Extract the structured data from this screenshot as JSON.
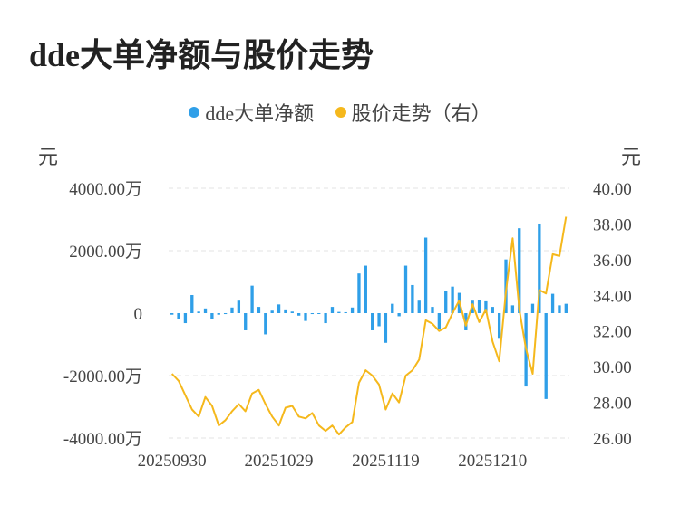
{
  "title": "dde大单净额与股价走势",
  "legend": {
    "items": [
      {
        "label": "dde大单净额",
        "color": "#2f9fe8"
      },
      {
        "label": "股价走势（右）",
        "color": "#f5b81c"
      }
    ]
  },
  "units": {
    "left": "元",
    "right": "元"
  },
  "chart_data": {
    "type": "bar+line",
    "title": "dde大单净额与股价走势",
    "grid": true,
    "legend_position": "top-center",
    "y_left": {
      "unit": "元",
      "ylim": [
        -4000,
        4000
      ],
      "ticks": [
        4000,
        2000,
        0,
        -2000,
        -4000
      ],
      "tick_labels": [
        "4000.00万",
        "2000.00万",
        "0",
        "-2000.00万",
        "-4000.00万"
      ]
    },
    "y_right": {
      "unit": "元",
      "ylim": [
        26,
        40
      ],
      "ticks": [
        40,
        38,
        36,
        34,
        32,
        30,
        28,
        26
      ],
      "tick_labels": [
        "40.00",
        "38.00",
        "36.00",
        "34.00",
        "32.00",
        "30.00",
        "28.00",
        "26.00"
      ]
    },
    "x_tick_labels": [
      {
        "index": 0,
        "label": "20250930"
      },
      {
        "index": 16,
        "label": "20251029"
      },
      {
        "index": 32,
        "label": "20251119"
      },
      {
        "index": 48,
        "label": "20251210"
      }
    ],
    "series": [
      {
        "name": "dde大单净额",
        "type": "bar",
        "color": "#2f9fe8",
        "values": [
          -50,
          -200,
          -320,
          580,
          50,
          150,
          -200,
          -50,
          -30,
          180,
          400,
          -550,
          880,
          200,
          -680,
          80,
          280,
          120,
          50,
          -80,
          -250,
          -30,
          -20,
          -320,
          200,
          40,
          30,
          180,
          1270,
          1520,
          -550,
          -420,
          -950,
          300,
          -100,
          1520,
          900,
          400,
          2420,
          200,
          -500,
          720,
          850,
          650,
          -550,
          400,
          420,
          380,
          200,
          -820,
          1720,
          250,
          2720,
          -2350,
          300,
          2870,
          -2750,
          620,
          250,
          300
        ]
      },
      {
        "name": "股价走势（右）",
        "type": "line",
        "color": "#f5b81c",
        "values": [
          29.6,
          29.2,
          28.4,
          27.6,
          27.2,
          28.3,
          27.8,
          26.7,
          27.0,
          27.5,
          27.9,
          27.5,
          28.5,
          28.7,
          27.9,
          27.2,
          26.7,
          27.7,
          27.8,
          27.2,
          27.1,
          27.4,
          26.7,
          26.4,
          26.7,
          26.2,
          26.6,
          26.9,
          29.1,
          29.8,
          29.5,
          29.0,
          27.6,
          28.5,
          28.0,
          29.5,
          29.8,
          30.4,
          32.6,
          32.4,
          32.0,
          32.2,
          33.0,
          33.7,
          32.3,
          33.5,
          32.5,
          33.2,
          31.4,
          30.3,
          34.2,
          37.2,
          33.2,
          31.0,
          29.6,
          34.3,
          34.1,
          36.3,
          36.2,
          38.4
        ]
      }
    ]
  }
}
